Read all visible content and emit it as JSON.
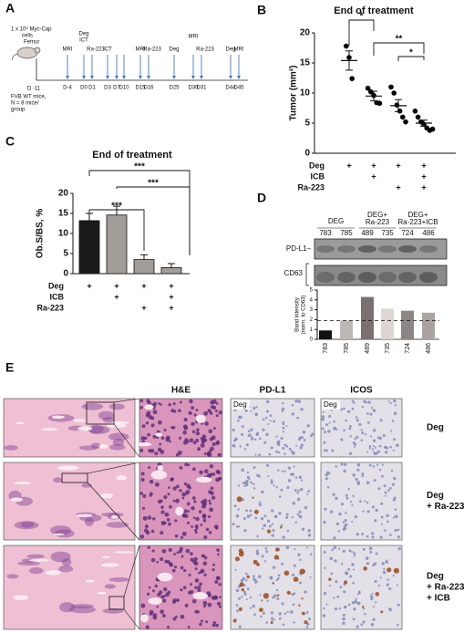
{
  "panel_labels": {
    "a": "A",
    "b": "B",
    "c": "C",
    "d": "D",
    "e": "E"
  },
  "timeline": {
    "injection": [
      "1 x 10⁶ Myc-Cap",
      "cells",
      "Femur"
    ],
    "start": "D -11",
    "mice": [
      "FVB WT mice,",
      "N = 8 mice/",
      "group"
    ],
    "events": [
      {
        "day": "D-4",
        "above": [
          "MRI"
        ]
      },
      {
        "day": "D0",
        "above": [
          "Deg",
          "ICT"
        ]
      },
      {
        "day": "D1",
        "above": [
          "Ra-223"
        ]
      },
      {
        "day": "D3",
        "above": [
          "ICT"
        ]
      },
      {
        "day": "D7"
      },
      {
        "day": "D10"
      },
      {
        "day": "D15",
        "above": [
          "MRI"
        ]
      },
      {
        "day": "D16",
        "above": [
          "Ra-223"
        ]
      },
      {
        "day": "D25",
        "above": [
          "Deg"
        ]
      },
      {
        "day": "D30",
        "above": [
          "MRI"
        ]
      },
      {
        "day": "D31",
        "above": [
          "Ra-223"
        ]
      },
      {
        "day": "D44",
        "above": [
          "Deg"
        ]
      },
      {
        "day": "D45",
        "above": [
          "MRI"
        ]
      }
    ]
  },
  "chart_data": [
    {
      "type": "dot",
      "title": "End of treatment",
      "y_label": "Tumor (mm²)",
      "ylim": [
        0,
        20
      ],
      "yticks": [
        0,
        5,
        10,
        15,
        20
      ],
      "color": "#000000",
      "groups": [
        {
          "values": [
            17.8,
            15.9,
            12.4
          ],
          "mean": 15.4,
          "error": 1.6
        },
        {
          "values": [
            10.8,
            10.2,
            9.6,
            8.4,
            8.3
          ],
          "mean": 9.5,
          "error": 0.8
        },
        {
          "values": [
            11.0,
            10.0,
            8.0,
            7.0,
            6.0,
            5.2
          ],
          "mean": 7.9,
          "error": 1.0
        },
        {
          "values": [
            7.0,
            6.0,
            5.2,
            4.8,
            4.2,
            3.8,
            4.0
          ],
          "mean": 5.0,
          "error": 0.5
        }
      ],
      "conditions": [
        {
          "label": "Deg",
          "marks": [
            "+",
            "+",
            "+",
            "+"
          ]
        },
        {
          "label": "ICB",
          "marks": [
            null,
            "+",
            null,
            "+"
          ]
        },
        {
          "label": "Ra-223",
          "marks": [
            null,
            null,
            "+",
            "+"
          ]
        }
      ],
      "significance": [
        "*",
        "**",
        "*"
      ]
    },
    {
      "type": "bar",
      "title": "End of treatment",
      "y_label": "Ob.S/BS, %",
      "ylim": [
        0,
        20
      ],
      "yticks": [
        0,
        5,
        10,
        15,
        20
      ],
      "values": [
        13.2,
        14.6,
        3.5,
        1.5
      ],
      "errors": [
        1.8,
        2.2,
        1.2,
        1.0
      ],
      "colors": [
        "#1a1a1a",
        "#a39d99",
        "#a39d99",
        "#a39d99"
      ],
      "conditions": [
        {
          "label": "Deg",
          "marks": [
            "+",
            "+",
            "+",
            "+"
          ]
        },
        {
          "label": "ICB",
          "marks": [
            null,
            "+",
            null,
            "+"
          ]
        },
        {
          "label": "Ra-223",
          "marks": [
            null,
            null,
            "+",
            "+"
          ]
        }
      ],
      "significance": [
        "***",
        "***",
        "***"
      ]
    },
    {
      "type": "blot_bar",
      "groups": [
        [
          "DEG"
        ],
        [
          "DEG+",
          "Ra-223"
        ],
        [
          "DEG+",
          "Ra-223+ICB"
        ]
      ],
      "lanes": [
        "783",
        "785",
        "489",
        "735",
        "724",
        "486"
      ],
      "bands": [
        "PD-L1–",
        "CD63"
      ],
      "y_label": [
        "Band intensity",
        "(norm. to CD63)"
      ],
      "categories": [
        "783",
        "785",
        "489",
        "735",
        "724",
        "486"
      ],
      "values": [
        0.9,
        1.9,
        4.3,
        3.1,
        2.9,
        2.7
      ],
      "colors": [
        "#111111",
        "#bdb7b5",
        "#7b6f6f",
        "#ddd6d3",
        "#8d8584",
        "#aaa3a1"
      ],
      "ylim": [
        0,
        5
      ],
      "yticks": [
        0,
        1,
        2,
        3,
        4,
        5
      ],
      "reference_line": 1.9
    }
  ],
  "histology": {
    "columns": [
      "H&E",
      "PD-L1",
      "ICOS"
    ],
    "rows": [
      {
        "label": [
          "Deg"
        ],
        "insets": [
          "Deg",
          "Deg"
        ]
      },
      {
        "label": [
          "Deg",
          "+ Ra-223"
        ]
      },
      {
        "label": [
          "Deg",
          "+ Ra-223",
          "+ ICB"
        ]
      }
    ]
  }
}
